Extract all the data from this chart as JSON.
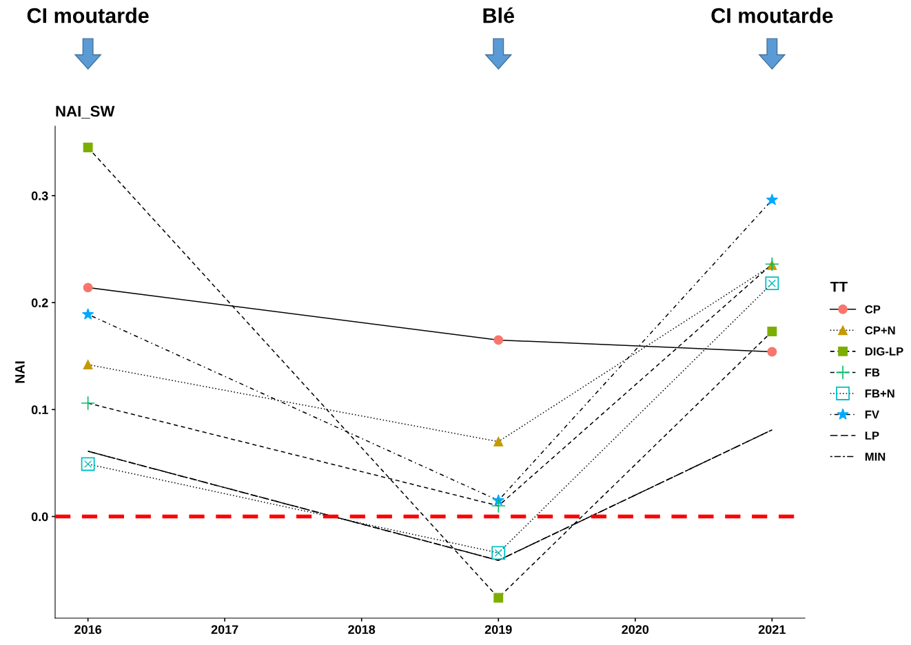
{
  "chart_data": {
    "type": "line",
    "title": "NAI_SW",
    "ylabel": "NAI",
    "legend_title": "TT",
    "legend": "right",
    "grid": false,
    "x": [
      2016,
      2019,
      2021
    ],
    "xlim": [
      2015.76,
      2021.24
    ],
    "xticks": [
      2016,
      2017,
      2018,
      2019,
      2020,
      2021
    ],
    "ylim": [
      -0.095,
      0.365
    ],
    "yticks": [
      {
        "value": 0,
        "label": "0.0"
      },
      0.1,
      0.2,
      0.3
    ],
    "series": [
      {
        "name": "CP",
        "color": "#f8766d",
        "marker": "circle",
        "line_style": "solid",
        "values": [
          0.214,
          0.165,
          0.154
        ]
      },
      {
        "name": "CP+N",
        "color": "#c49a00",
        "marker": "triangle",
        "line_style": "dotted",
        "values": [
          0.142,
          0.07,
          0.235
        ]
      },
      {
        "name": "DIG-LP",
        "color": "#7cae00",
        "marker": "square",
        "line_style": "dashed",
        "values": [
          0.345,
          -0.076,
          0.173
        ]
      },
      {
        "name": "FB",
        "color": "#00be67",
        "marker": "cross",
        "line_style": "dashed",
        "values": [
          0.106,
          0.01,
          0.236
        ]
      },
      {
        "name": "FB+N",
        "color": "#00bfc4",
        "marker": "square-x",
        "line_style": "dotted",
        "values": [
          0.049,
          -0.034,
          0.218
        ]
      },
      {
        "name": "FV",
        "color": "#00a9ff",
        "marker": "star",
        "line_style": "dashdot",
        "values": [
          0.189,
          0.015,
          0.296
        ]
      },
      {
        "name": "LP",
        "color": "#000000",
        "marker": "none",
        "line_style": "longdash",
        "values": [
          0.061,
          -0.041,
          0.081
        ]
      },
      {
        "name": "MIN",
        "color": "#000000",
        "marker": "none",
        "line_style": "twodash",
        "values": [
          0.061,
          -0.041,
          0.081
        ]
      }
    ],
    "ref_lines": [
      {
        "axis": "y",
        "value": 0,
        "color": "#ff0000",
        "line_style": "dashed"
      }
    ],
    "annotations": [
      "CI moutarde",
      "Blé",
      "CI moutarde"
    ]
  }
}
